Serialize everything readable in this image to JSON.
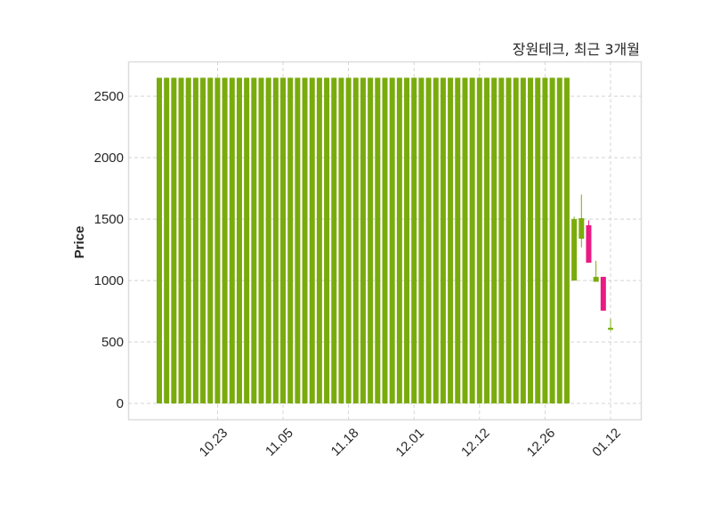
{
  "chart_data": {
    "type": "candlestick",
    "title": "장원테크, 최근 3개월",
    "xlabel": "",
    "ylabel": "Price",
    "ylim": [
      -130,
      2783
    ],
    "yticks": [
      0,
      500,
      1000,
      1500,
      2000,
      2500
    ],
    "xticks": [
      "10.23",
      "11.05",
      "11.18",
      "12.01",
      "12.12",
      "12.26",
      "01.12"
    ],
    "grid": true,
    "colors": {
      "up": "#7aab0d",
      "down": "#ea1a84",
      "grid": "#cccccc",
      "frame": "#dddddd"
    },
    "columns": [
      "date",
      "open",
      "high",
      "low",
      "close"
    ],
    "candles": [
      [
        "10.13",
        0,
        2650,
        0,
        2650
      ],
      [
        "10.14",
        0,
        2650,
        0,
        2650
      ],
      [
        "10.15",
        0,
        2650,
        0,
        2650
      ],
      [
        "10.16",
        0,
        2650,
        0,
        2650
      ],
      [
        "10.17",
        0,
        2650,
        0,
        2650
      ],
      [
        "10.20",
        0,
        2650,
        0,
        2650
      ],
      [
        "10.21",
        0,
        2650,
        0,
        2650
      ],
      [
        "10.22",
        0,
        2650,
        0,
        2650
      ],
      [
        "10.23",
        0,
        2650,
        0,
        2650
      ],
      [
        "10.24",
        0,
        2650,
        0,
        2650
      ],
      [
        "10.27",
        0,
        2650,
        0,
        2650
      ],
      [
        "10.28",
        0,
        2650,
        0,
        2650
      ],
      [
        "10.29",
        0,
        2650,
        0,
        2650
      ],
      [
        "10.30",
        0,
        2650,
        0,
        2650
      ],
      [
        "10.31",
        0,
        2650,
        0,
        2650
      ],
      [
        "11.03",
        0,
        2650,
        0,
        2650
      ],
      [
        "11.04",
        0,
        2650,
        0,
        2650
      ],
      [
        "11.05",
        0,
        2650,
        0,
        2650
      ],
      [
        "11.06",
        0,
        2650,
        0,
        2650
      ],
      [
        "11.07",
        0,
        2650,
        0,
        2650
      ],
      [
        "11.10",
        0,
        2650,
        0,
        2650
      ],
      [
        "11.11",
        0,
        2650,
        0,
        2650
      ],
      [
        "11.12",
        0,
        2650,
        0,
        2650
      ],
      [
        "11.13",
        0,
        2650,
        0,
        2650
      ],
      [
        "11.14",
        0,
        2650,
        0,
        2650
      ],
      [
        "11.17",
        0,
        2650,
        0,
        2650
      ],
      [
        "11.18",
        0,
        2650,
        0,
        2650
      ],
      [
        "11.19",
        0,
        2650,
        0,
        2650
      ],
      [
        "11.20",
        0,
        2650,
        0,
        2650
      ],
      [
        "11.21",
        0,
        2650,
        0,
        2650
      ],
      [
        "11.24",
        0,
        2650,
        0,
        2650
      ],
      [
        "11.25",
        0,
        2650,
        0,
        2650
      ],
      [
        "11.26",
        0,
        2650,
        0,
        2650
      ],
      [
        "11.27",
        0,
        2650,
        0,
        2650
      ],
      [
        "11.28",
        0,
        2650,
        0,
        2650
      ],
      [
        "12.01",
        0,
        2650,
        0,
        2650
      ],
      [
        "12.02",
        0,
        2650,
        0,
        2650
      ],
      [
        "12.03",
        0,
        2650,
        0,
        2650
      ],
      [
        "12.04",
        0,
        2650,
        0,
        2650
      ],
      [
        "12.05",
        0,
        2650,
        0,
        2650
      ],
      [
        "12.08",
        0,
        2650,
        0,
        2650
      ],
      [
        "12.09",
        0,
        2650,
        0,
        2650
      ],
      [
        "12.10",
        0,
        2650,
        0,
        2650
      ],
      [
        "12.11",
        0,
        2650,
        0,
        2650
      ],
      [
        "12.12",
        0,
        2650,
        0,
        2650
      ],
      [
        "12.15",
        0,
        2650,
        0,
        2650
      ],
      [
        "12.16",
        0,
        2650,
        0,
        2650
      ],
      [
        "12.17",
        0,
        2650,
        0,
        2650
      ],
      [
        "12.18",
        0,
        2650,
        0,
        2650
      ],
      [
        "12.19",
        0,
        2650,
        0,
        2650
      ],
      [
        "12.22",
        0,
        2650,
        0,
        2650
      ],
      [
        "12.23",
        0,
        2650,
        0,
        2650
      ],
      [
        "12.24",
        0,
        2650,
        0,
        2650
      ],
      [
        "12.26",
        0,
        2650,
        0,
        2650
      ],
      [
        "12.29",
        0,
        2650,
        0,
        2650
      ],
      [
        "12.30",
        0,
        2650,
        0,
        2650
      ],
      [
        "01.02",
        0,
        2650,
        0,
        2650
      ],
      [
        "01.05",
        1000,
        1520,
        1000,
        1500
      ],
      [
        "01.06",
        1340,
        1700,
        1270,
        1507
      ],
      [
        "01.07",
        1450,
        1490,
        1145,
        1145
      ],
      [
        "01.08",
        990,
        1160,
        990,
        1030
      ],
      [
        "01.09",
        1030,
        1030,
        755,
        755
      ],
      [
        "01.12",
        600,
        690,
        590,
        615
      ]
    ]
  }
}
